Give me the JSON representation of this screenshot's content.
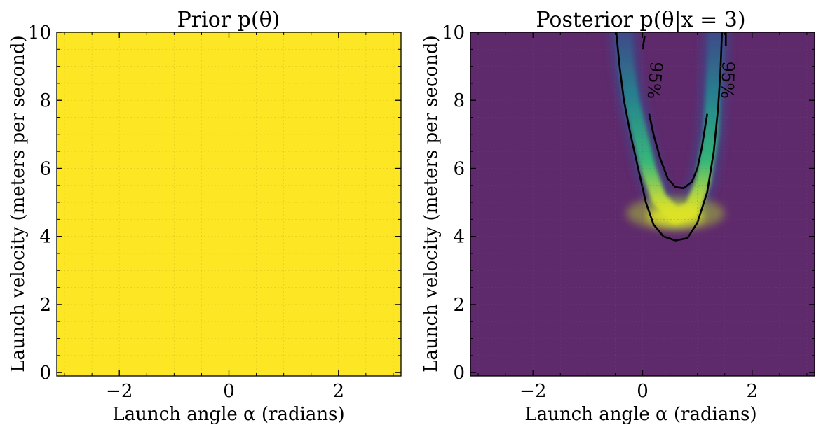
{
  "chart_data": [
    {
      "type": "heatmap",
      "title": "Prior p(θ)",
      "xlabel": "Launch angle α (radians)",
      "ylabel": "Launch velocity (meters per second)",
      "xlim": [
        -3.1416,
        3.1416
      ],
      "ylim": [
        -0.1,
        10
      ],
      "xticks": [
        -2,
        0,
        2
      ],
      "yticks": [
        0,
        2,
        4,
        6,
        8,
        10
      ],
      "density": "uniform",
      "fill_color": "#fde725",
      "grid": true
    },
    {
      "type": "heatmap",
      "title": "Posterior p(θ|x = 3)",
      "xlabel": "Launch angle α (radians)",
      "ylabel": "Launch velocity (meters per second)",
      "xlim": [
        -3.1416,
        3.1416
      ],
      "ylim": [
        -0.1,
        10
      ],
      "xticks": [
        -2,
        0,
        2
      ],
      "yticks": [
        0,
        2,
        4,
        6,
        8,
        10
      ],
      "background_color": "#5e2a6c",
      "colormap": [
        "#5e2a6c",
        "#3e4a89",
        "#26828e",
        "#35b779",
        "#b5de2b",
        "#fde725"
      ],
      "peak": {
        "x": 0.6,
        "y": 4.6
      },
      "ridge_points": [
        {
          "x": -0.35,
          "y": 10
        },
        {
          "x": -0.3,
          "y": 9
        },
        {
          "x": -0.2,
          "y": 8
        },
        {
          "x": -0.05,
          "y": 7
        },
        {
          "x": 0.1,
          "y": 6
        },
        {
          "x": 0.3,
          "y": 5.1
        },
        {
          "x": 0.6,
          "y": 4.6
        },
        {
          "x": 0.9,
          "y": 4.8
        },
        {
          "x": 1.1,
          "y": 5.6
        },
        {
          "x": 1.25,
          "y": 7
        },
        {
          "x": 1.3,
          "y": 8.5
        },
        {
          "x": 1.35,
          "y": 10
        }
      ],
      "contour_outer": [
        {
          "x": -0.48,
          "y": 10
        },
        {
          "x": -0.42,
          "y": 9
        },
        {
          "x": -0.34,
          "y": 8
        },
        {
          "x": -0.22,
          "y": 7
        },
        {
          "x": -0.08,
          "y": 6
        },
        {
          "x": 0.06,
          "y": 5
        },
        {
          "x": 0.2,
          "y": 4.35
        },
        {
          "x": 0.38,
          "y": 4.0
        },
        {
          "x": 0.6,
          "y": 3.88
        },
        {
          "x": 0.82,
          "y": 3.95
        },
        {
          "x": 1.0,
          "y": 4.4
        },
        {
          "x": 1.18,
          "y": 5.3
        },
        {
          "x": 1.3,
          "y": 6.5
        },
        {
          "x": 1.38,
          "y": 7.8
        },
        {
          "x": 1.42,
          "y": 8.8
        },
        {
          "x": 1.45,
          "y": 10
        }
      ],
      "contour_inner_left": [
        {
          "x": 0.12,
          "y": 7.6
        },
        {
          "x": 0.2,
          "y": 7.0
        },
        {
          "x": 0.32,
          "y": 6.3
        },
        {
          "x": 0.46,
          "y": 5.7
        },
        {
          "x": 0.6,
          "y": 5.45
        },
        {
          "x": 0.75,
          "y": 5.42
        },
        {
          "x": 0.9,
          "y": 5.6
        },
        {
          "x": 1.0,
          "y": 6.0
        },
        {
          "x": 1.08,
          "y": 6.6
        },
        {
          "x": 1.14,
          "y": 7.2
        },
        {
          "x": 1.18,
          "y": 7.6
        }
      ],
      "contour_outer_top_left": [
        {
          "x": 0.04,
          "y": 9.9
        },
        {
          "x": 0.0,
          "y": 9.5
        }
      ],
      "contour_outer_top_right": [
        {
          "x": 1.52,
          "y": 9.6
        },
        {
          "x": 1.52,
          "y": 10
        }
      ],
      "contour_labels": [
        {
          "text": "95%",
          "x": 0.12,
          "y": 8.6,
          "rotate": 95
        },
        {
          "text": "95%",
          "x": 1.45,
          "y": 8.6,
          "rotate": 92
        }
      ]
    }
  ]
}
